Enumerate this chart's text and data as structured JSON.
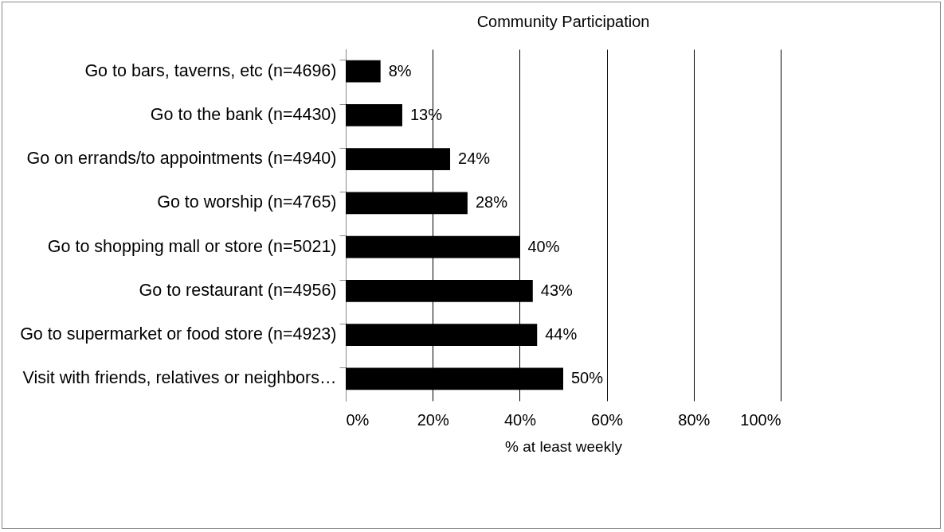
{
  "chart_data": {
    "type": "bar",
    "orientation": "horizontal",
    "title": "Community Participation",
    "xlabel": "% at least weekly",
    "categories": [
      "Go to bars, taverns, etc (n=4696)",
      "Go to the bank (n=4430)",
      "Go on errands/to appointments (n=4940)",
      "Go to worship (n=4765)",
      "Go to shopping mall or store (n=5021)",
      "Go to restaurant (n=4956)",
      "Go to supermarket or food store (n=4923)",
      "Visit with friends, relatives or neighbors…"
    ],
    "values": [
      8,
      13,
      24,
      28,
      40,
      43,
      44,
      50
    ],
    "value_labels": [
      "8%",
      "13%",
      "24%",
      "28%",
      "40%",
      "43%",
      "44%",
      "50%"
    ],
    "color": "#000000",
    "xlim": [
      0,
      100
    ],
    "xticks": [
      {
        "value": 0,
        "label": "0%"
      },
      {
        "value": 20,
        "label": "20%"
      },
      {
        "value": 40,
        "label": "40%"
      },
      {
        "value": 60,
        "label": "60%"
      },
      {
        "value": 80,
        "label": "80%"
      },
      {
        "value": 100,
        "label": "100%"
      }
    ],
    "grid": "x"
  }
}
